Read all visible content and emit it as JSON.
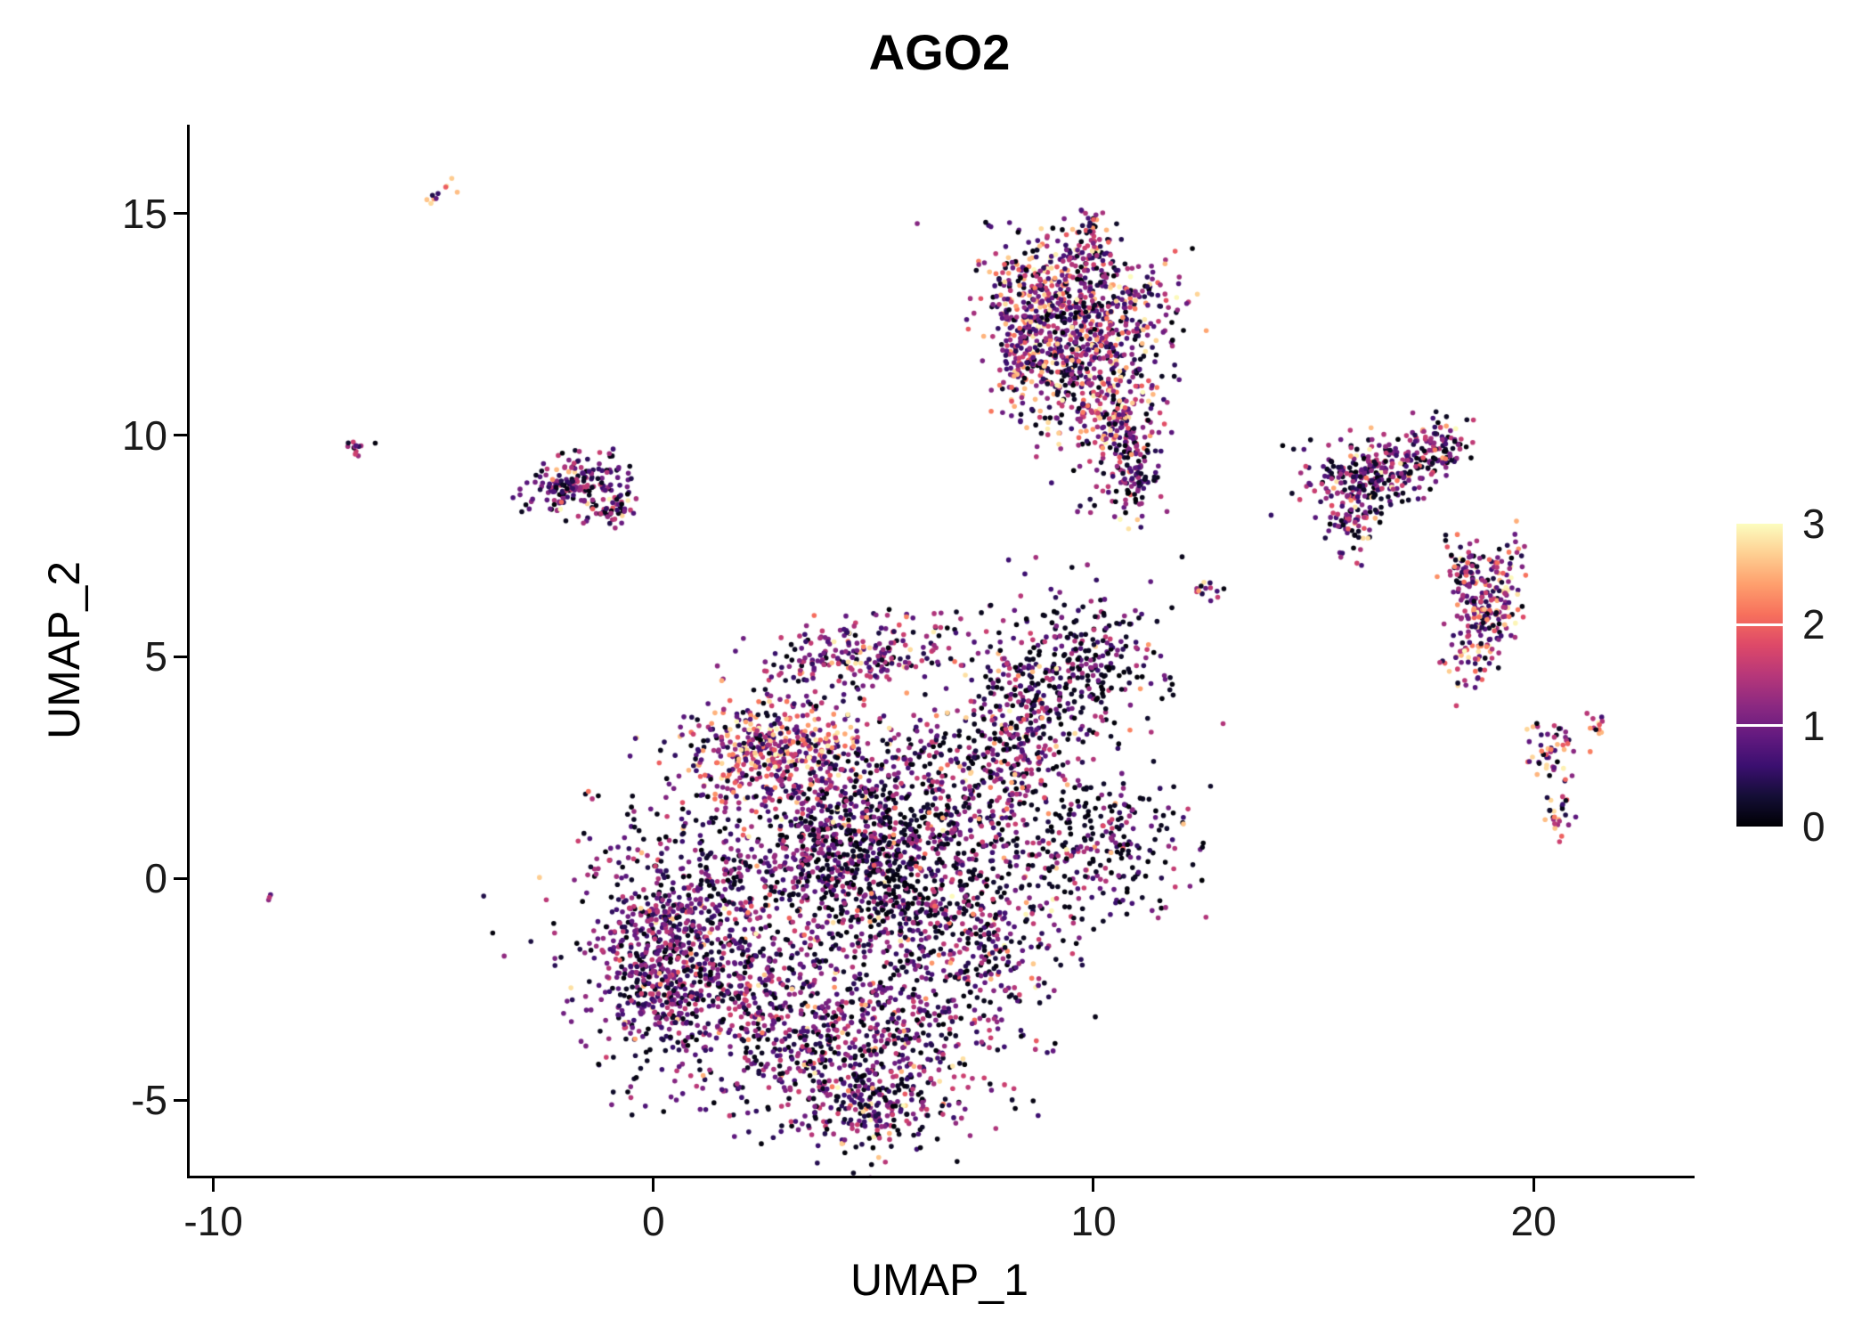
{
  "figure": {
    "background": "#ffffff",
    "axis_color": "#000000",
    "text_color": "#1a1a1a"
  },
  "chart_data": {
    "type": "scatter",
    "title": "AGO2",
    "xlabel": "UMAP_1",
    "ylabel": "UMAP_2",
    "xlim": [
      -10.6,
      23.6
    ],
    "ylim": [
      -6.7,
      17.0
    ],
    "x_ticks": [
      -10,
      0,
      10,
      20
    ],
    "y_ticks": [
      -5,
      0,
      5,
      10,
      15
    ],
    "grid": false,
    "point_radius_px": 2.8,
    "seed": 42,
    "legend": {
      "type": "colorbar",
      "position": "right",
      "range": [
        0,
        3
      ],
      "ticks": [
        0,
        1,
        2,
        3
      ],
      "inner_tick_values": [
        1,
        2
      ]
    },
    "colormap": {
      "name": "magma",
      "stops": [
        {
          "t": 0.0,
          "color": "#000004"
        },
        {
          "t": 0.1,
          "color": "#140e36"
        },
        {
          "t": 0.2,
          "color": "#3b0f70"
        },
        {
          "t": 0.3,
          "color": "#641a80"
        },
        {
          "t": 0.4,
          "color": "#8c2981"
        },
        {
          "t": 0.5,
          "color": "#b73779"
        },
        {
          "t": 0.6,
          "color": "#de4968"
        },
        {
          "t": 0.7,
          "color": "#f7705c"
        },
        {
          "t": 0.8,
          "color": "#fe9f6d"
        },
        {
          "t": 0.9,
          "color": "#fecf92"
        },
        {
          "t": 1.0,
          "color": "#fcfdbf"
        }
      ]
    },
    "clusters": [
      {
        "x": 1.0,
        "y": -1.3,
        "sx": 1.5,
        "sy": 1.6,
        "n": 900,
        "p0": 0.3,
        "hot": 0.05,
        "rot": 0
      },
      {
        "x": 0.2,
        "y": -2.0,
        "sx": 0.6,
        "sy": 0.9,
        "n": 320,
        "p0": 0.25,
        "hot": 0.03,
        "rot": 0
      },
      {
        "x": 2.6,
        "y": 2.9,
        "sx": 1.0,
        "sy": 0.55,
        "n": 430,
        "p0": 0.1,
        "hot": 0.3,
        "rot": 0
      },
      {
        "x": 4.6,
        "y": 5.0,
        "sx": 1.2,
        "sy": 0.45,
        "n": 250,
        "p0": 0.18,
        "hot": 0.12,
        "rot": 8
      },
      {
        "x": 5.0,
        "y": 0.3,
        "sx": 1.2,
        "sy": 1.0,
        "n": 580,
        "p0": 0.55,
        "hot": 0.02,
        "rot": 0
      },
      {
        "x": 3.8,
        "y": 1.3,
        "sx": 1.0,
        "sy": 0.9,
        "n": 340,
        "p0": 0.3,
        "hot": 0.08,
        "rot": 0
      },
      {
        "x": 4.3,
        "y": -3.6,
        "sx": 1.6,
        "sy": 1.1,
        "n": 680,
        "p0": 0.28,
        "hot": 0.09,
        "rot": 0
      },
      {
        "x": 4.9,
        "y": -5.1,
        "sx": 0.8,
        "sy": 0.45,
        "n": 170,
        "p0": 0.35,
        "hot": 0.05,
        "rot": 0
      },
      {
        "x": 7.0,
        "y": -1.2,
        "sx": 1.1,
        "sy": 1.4,
        "n": 540,
        "p0": 0.35,
        "hot": 0.06,
        "rot": 0
      },
      {
        "x": 7.9,
        "y": 2.7,
        "sx": 0.7,
        "sy": 1.0,
        "n": 270,
        "p0": 0.3,
        "hot": 0.1,
        "rot": 0
      },
      {
        "x": 9.7,
        "y": 5.0,
        "sx": 1.1,
        "sy": 0.8,
        "n": 270,
        "p0": 0.5,
        "hot": 0.04,
        "rot": 0
      },
      {
        "x": 9.9,
        "y": 0.9,
        "sx": 1.0,
        "sy": 0.9,
        "n": 290,
        "p0": 0.45,
        "hot": 0.04,
        "rot": 0
      },
      {
        "x": 8.7,
        "y": 3.9,
        "sx": 0.5,
        "sy": 0.6,
        "n": 120,
        "p0": 0.4,
        "hot": 0.05,
        "rot": 0
      },
      {
        "x": 6.1,
        "y": 2.2,
        "sx": 0.6,
        "sy": 0.8,
        "n": 150,
        "p0": 0.3,
        "hot": 0.08,
        "rot": 0
      },
      {
        "x": 9.0,
        "y": 13.4,
        "sx": 0.8,
        "sy": 0.65,
        "n": 300,
        "p0": 0.15,
        "hot": 0.25,
        "rot": 0
      },
      {
        "x": 10.3,
        "y": 12.6,
        "sx": 0.8,
        "sy": 0.7,
        "n": 300,
        "p0": 0.2,
        "hot": 0.2,
        "rot": 0
      },
      {
        "x": 9.3,
        "y": 11.6,
        "sx": 0.7,
        "sy": 0.6,
        "n": 250,
        "p0": 0.2,
        "hot": 0.2,
        "rot": 0
      },
      {
        "x": 10.4,
        "y": 10.4,
        "sx": 0.6,
        "sy": 0.6,
        "n": 220,
        "p0": 0.2,
        "hot": 0.25,
        "rot": 0
      },
      {
        "x": 10.8,
        "y": 9.2,
        "sx": 0.25,
        "sy": 0.5,
        "n": 80,
        "p0": 0.3,
        "hot": 0.1,
        "rot": 0
      },
      {
        "x": 8.3,
        "y": 12.1,
        "sx": 0.3,
        "sy": 0.8,
        "n": 120,
        "p0": 0.12,
        "hot": 0.3,
        "rot": 0
      },
      {
        "x": 9.9,
        "y": 14.3,
        "sx": 0.18,
        "sy": 0.4,
        "n": 50,
        "p0": 0.2,
        "hot": 0.2,
        "rot": 0
      },
      {
        "x": -1.8,
        "y": 8.95,
        "sx": 0.55,
        "sy": 0.28,
        "n": 170,
        "p0": 0.3,
        "hot": 0.04,
        "rot": 12
      },
      {
        "x": -1.05,
        "y": 8.4,
        "sx": 0.28,
        "sy": 0.25,
        "n": 60,
        "p0": 0.3,
        "hot": 0.06,
        "rot": 0
      },
      {
        "x": -6.8,
        "y": 9.7,
        "sx": 0.12,
        "sy": 0.1,
        "n": 12,
        "p0": 0.3,
        "hot": 0.05,
        "rot": 0
      },
      {
        "x": -4.9,
        "y": 15.45,
        "sx": 0.22,
        "sy": 0.06,
        "n": 10,
        "p0": 0.05,
        "hot": 0.7,
        "rot": 35
      },
      {
        "x": -8.8,
        "y": -0.45,
        "sx": 0.06,
        "sy": 0.06,
        "n": 3,
        "p0": 0.4,
        "hot": 0.0,
        "rot": 0
      },
      {
        "x": 16.3,
        "y": 9.2,
        "sx": 0.85,
        "sy": 0.4,
        "n": 280,
        "p0": 0.25,
        "hot": 0.12,
        "rot": 18
      },
      {
        "x": 17.7,
        "y": 9.6,
        "sx": 0.45,
        "sy": 0.3,
        "n": 90,
        "p0": 0.25,
        "hot": 0.12,
        "rot": 30
      },
      {
        "x": 15.9,
        "y": 8.1,
        "sx": 0.3,
        "sy": 0.4,
        "n": 70,
        "p0": 0.3,
        "hot": 0.1,
        "rot": 0
      },
      {
        "x": 18.8,
        "y": 5.9,
        "sx": 0.3,
        "sy": 0.85,
        "n": 230,
        "p0": 0.15,
        "hot": 0.3,
        "rot": -20
      },
      {
        "x": 18.35,
        "y": 7.0,
        "sx": 0.22,
        "sy": 0.3,
        "n": 60,
        "p0": 0.2,
        "hot": 0.2,
        "rot": 0
      },
      {
        "x": 20.4,
        "y": 2.8,
        "sx": 0.3,
        "sy": 0.35,
        "n": 50,
        "p0": 0.15,
        "hot": 0.4,
        "rot": 0
      },
      {
        "x": 20.5,
        "y": 1.4,
        "sx": 0.14,
        "sy": 0.3,
        "n": 25,
        "p0": 0.15,
        "hot": 0.4,
        "rot": 0
      },
      {
        "x": 21.4,
        "y": 3.4,
        "sx": 0.12,
        "sy": 0.2,
        "n": 12,
        "p0": 0.2,
        "hot": 0.35,
        "rot": 0
      },
      {
        "x": 12.55,
        "y": 6.5,
        "sx": 0.25,
        "sy": 0.1,
        "n": 14,
        "p0": 0.3,
        "hot": 0.2,
        "rot": 0
      },
      {
        "x": 10.6,
        "y": 8.7,
        "sx": 0.5,
        "sy": 0.45,
        "n": 40,
        "p0": 0.4,
        "hot": 0.05,
        "rot": 0
      }
    ]
  }
}
